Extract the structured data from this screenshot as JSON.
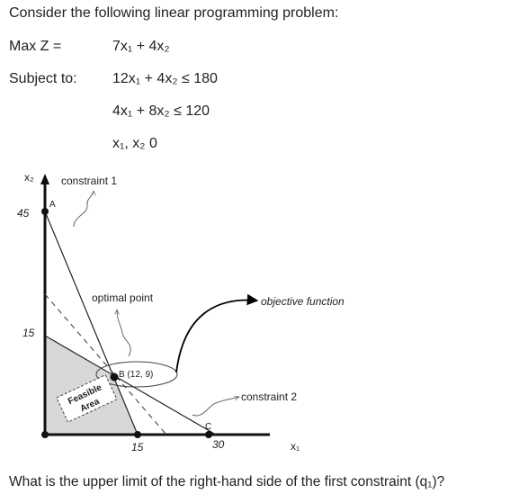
{
  "heading": "Consider the following linear programming problem:",
  "objective": {
    "label": "Max Z =",
    "expr": "7x₁ + 4x₂"
  },
  "constraints": {
    "label": "Subject to:",
    "c1": "12x₁ + 4x₂ ≤ 180",
    "c2": "4x₁ + 8x₂ ≤ 120",
    "nonneg": "x₁, x₂ 0"
  },
  "graph": {
    "y_axis_label": "x₂",
    "x_axis_label": "x₁",
    "tick_45": "45",
    "tick_15_y": "15",
    "tick_15_x": "15",
    "tick_30": "30",
    "point_a": "A",
    "point_b": "B (12, 9)",
    "point_c": "C",
    "ann_constraint1": "constraint 1",
    "ann_optimal": "optimal point",
    "ann_objective": "objective function",
    "ann_constraint2": "constraint 2",
    "feasible_line1": "Feasible",
    "feasible_line2": "Area"
  },
  "question": "What is the upper limit of the right-hand side of the first constraint (q₁)?"
}
